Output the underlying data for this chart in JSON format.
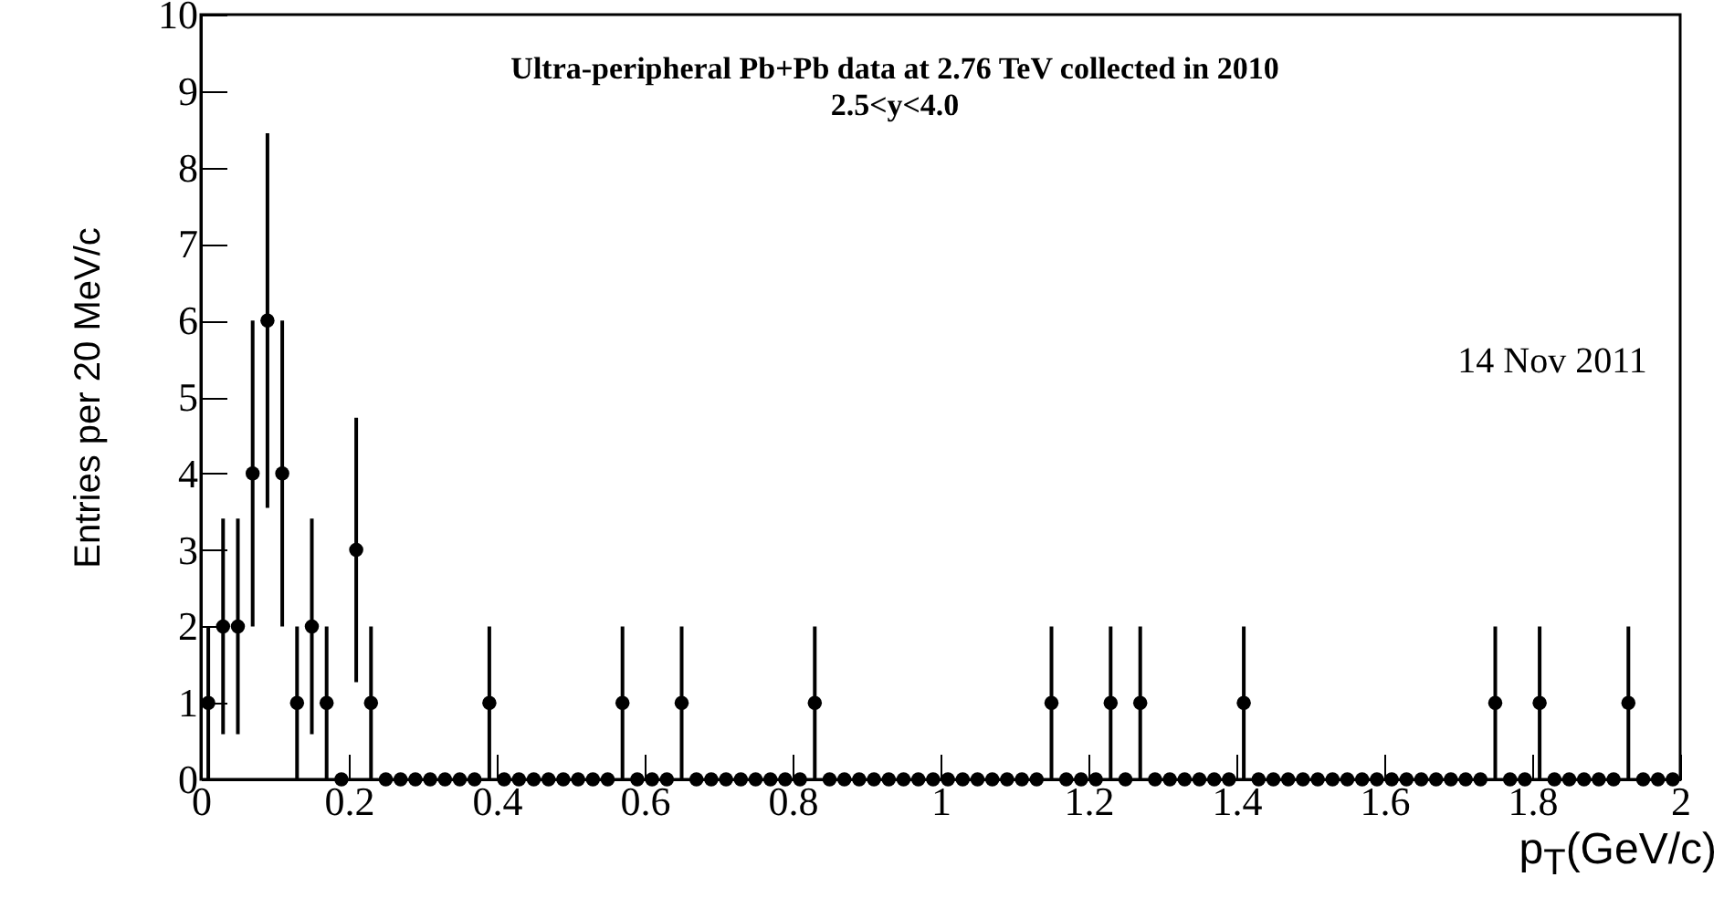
{
  "chart_data": {
    "type": "scatter",
    "xlabel": "p$_{T}$(GeV/c)",
    "ylabel": "Entries per 20 MeV/c",
    "annotations": [
      "Ultra-peripheral Pb+Pb data at 2.76 TeV collected in 2010",
      "2.5<y<4.0",
      "14 Nov 2011"
    ],
    "x": [
      0.01,
      0.03,
      0.05,
      0.07,
      0.09,
      0.11,
      0.13,
      0.15,
      0.17,
      0.19,
      0.21,
      0.23,
      0.25,
      0.27,
      0.29,
      0.31,
      0.33,
      0.35,
      0.37,
      0.39,
      0.41,
      0.43,
      0.45,
      0.47,
      0.49,
      0.51,
      0.53,
      0.55,
      0.57,
      0.59,
      0.61,
      0.63,
      0.65,
      0.67,
      0.69,
      0.71,
      0.73,
      0.75,
      0.77,
      0.79,
      0.81,
      0.83,
      0.85,
      0.87,
      0.89,
      0.91,
      0.93,
      0.95,
      0.97,
      0.99,
      1.01,
      1.03,
      1.05,
      1.07,
      1.09,
      1.11,
      1.13,
      1.15,
      1.17,
      1.19,
      1.21,
      1.23,
      1.25,
      1.27,
      1.29,
      1.31,
      1.33,
      1.35,
      1.37,
      1.39,
      1.41,
      1.43,
      1.45,
      1.47,
      1.49,
      1.51,
      1.53,
      1.55,
      1.57,
      1.59,
      1.61,
      1.63,
      1.65,
      1.67,
      1.69,
      1.71,
      1.73,
      1.75,
      1.77,
      1.79,
      1.81,
      1.83,
      1.85,
      1.87,
      1.89,
      1.91,
      1.93,
      1.95,
      1.97,
      1.99
    ],
    "series": [
      {
        "color": "#000000",
        "values": [
          1,
          2,
          2,
          4,
          6,
          4,
          1,
          2,
          1,
          0,
          3,
          1,
          0,
          0,
          0,
          0,
          0,
          0,
          0,
          1,
          0,
          0,
          0,
          0,
          0,
          0,
          0,
          0,
          1,
          0,
          0,
          0,
          1,
          0,
          0,
          0,
          0,
          0,
          0,
          0,
          0,
          1,
          0,
          0,
          0,
          0,
          0,
          0,
          0,
          0,
          0,
          0,
          0,
          0,
          0,
          0,
          0,
          1,
          0,
          0,
          0,
          1,
          0,
          1,
          0,
          0,
          0,
          0,
          0,
          0,
          1,
          0,
          0,
          0,
          0,
          0,
          0,
          0,
          0,
          0,
          0,
          0,
          0,
          0,
          0,
          0,
          0,
          1,
          0,
          0,
          1,
          0,
          0,
          0,
          0,
          0,
          1,
          0,
          0,
          0
        ],
        "errors": [
          1,
          1.41,
          1.41,
          2,
          2.45,
          2,
          1,
          1.41,
          1,
          null,
          1.73,
          1,
          null,
          null,
          null,
          null,
          null,
          null,
          null,
          1,
          null,
          null,
          null,
          null,
          null,
          null,
          null,
          null,
          1,
          null,
          null,
          null,
          1,
          null,
          null,
          null,
          null,
          null,
          null,
          null,
          null,
          1,
          null,
          null,
          null,
          null,
          null,
          null,
          null,
          null,
          null,
          null,
          null,
          null,
          null,
          null,
          null,
          1,
          null,
          null,
          null,
          1,
          null,
          1,
          null,
          null,
          null,
          null,
          null,
          null,
          1,
          null,
          null,
          null,
          null,
          null,
          null,
          null,
          null,
          null,
          null,
          null,
          null,
          null,
          null,
          null,
          null,
          1,
          null,
          null,
          1,
          null,
          null,
          null,
          null,
          null,
          1,
          null,
          null,
          null
        ]
      }
    ],
    "xlim": [
      0,
      2
    ],
    "xticks": [
      0,
      0.2,
      0.4,
      0.6,
      0.8,
      1,
      1.2,
      1.4,
      1.6,
      1.8,
      2
    ],
    "ylim": [
      0,
      10
    ],
    "yticks": [
      0,
      1,
      2,
      3,
      4,
      5,
      6,
      7,
      8,
      9,
      10
    ],
    "grid": false,
    "marker": "circle"
  }
}
